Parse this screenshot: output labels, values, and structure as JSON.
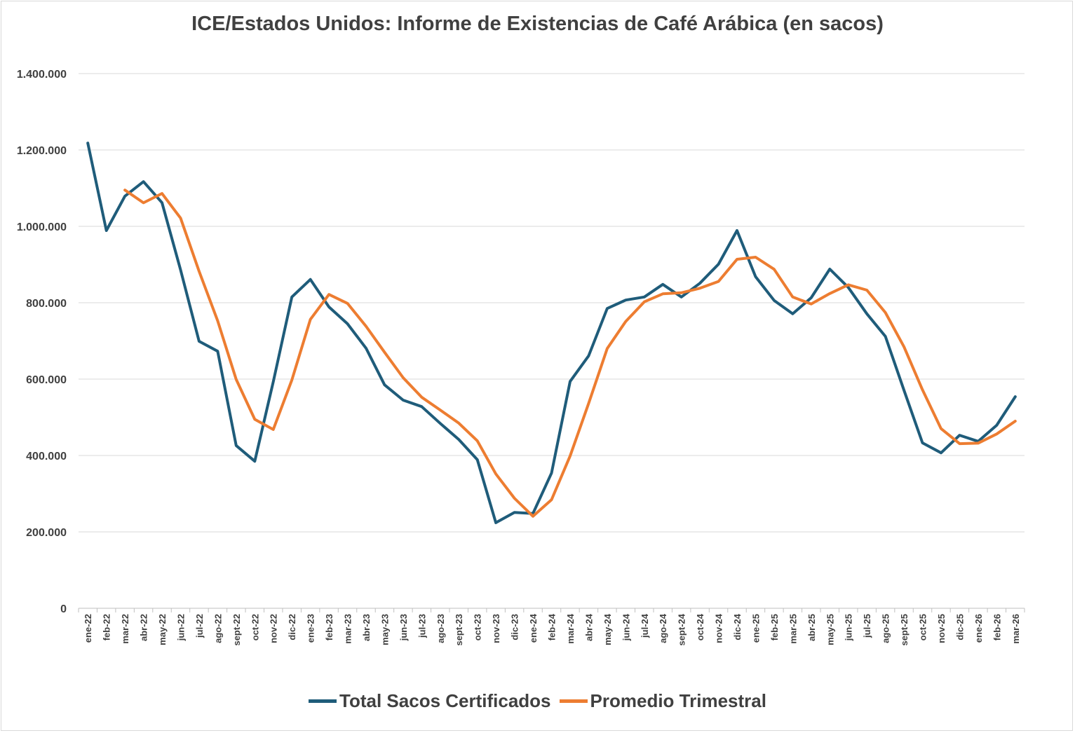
{
  "chart_data": {
    "type": "line",
    "title": "ICE/Estados Unidos: Informe de Existencias de Café Arábica (en sacos)",
    "xlabel": "",
    "ylabel": "",
    "ylim": [
      0,
      1400000
    ],
    "yticks": [
      0,
      200000,
      400000,
      600000,
      800000,
      1000000,
      1200000,
      1400000
    ],
    "ytick_labels": [
      "0",
      "200.000",
      "400.000",
      "600.000",
      "800.000",
      "1.000.000",
      "1.200.000",
      "1.400.000"
    ],
    "grid": "horizontal",
    "legend": "bottom",
    "categories": [
      "ene-22",
      "feb-22",
      "mar-22",
      "abr-22",
      "may-22",
      "jun-22",
      "jul-22",
      "ago-22",
      "sept-22",
      "oct-22",
      "nov-22",
      "dic-22",
      "ene-23",
      "feb-23",
      "mar-23",
      "abr-23",
      "may-23",
      "jun-23",
      "jul-23",
      "ago-23",
      "sept-23",
      "oct-23",
      "nov-23",
      "dic-23",
      "ene-24",
      "feb-24",
      "mar-24",
      "abr-24",
      "may-24",
      "jun-24",
      "jul-24",
      "ago-24",
      "sept-24",
      "oct-24",
      "nov-24",
      "dic-24",
      "ene-25",
      "feb-25",
      "mar-25",
      "abr-25",
      "may-25",
      "jun-25",
      "jul-25",
      "ago-25",
      "sept-25",
      "oct-25",
      "nov-25",
      "dic-25",
      "ene-26",
      "feb-26",
      "mar-26"
    ],
    "series": [
      {
        "name": "Total Sacos Certificados",
        "color": "#1f5c7a",
        "values": [
          1218000,
          989000,
          1079000,
          1117000,
          1062000,
          886000,
          699000,
          673000,
          426000,
          385000,
          593000,
          815000,
          861000,
          789000,
          745000,
          681000,
          585000,
          545000,
          528000,
          484000,
          442000,
          389000,
          224000,
          251000,
          248000,
          354000,
          594000,
          661000,
          785000,
          807000,
          815000,
          848000,
          815000,
          851000,
          901000,
          989000,
          868000,
          806000,
          771000,
          813000,
          888000,
          840000,
          771000,
          712000,
          571000,
          433000,
          407000,
          453000,
          437000,
          479000,
          554000
        ]
      },
      {
        "name": "Promedio Trimestral",
        "color": "#ed7d31",
        "values": [
          null,
          null,
          1095000,
          1061700,
          1086000,
          1021700,
          882300,
          752700,
          599300,
          494700,
          468000,
          597700,
          756300,
          821700,
          798300,
          738300,
          670300,
          603700,
          552700,
          519000,
          484700,
          438300,
          351700,
          288000,
          241000,
          284300,
          398700,
          536300,
          680000,
          751000,
          802300,
          823300,
          826000,
          838000,
          855700,
          913700,
          919300,
          887700,
          815000,
          796700,
          824000,
          847000,
          833000,
          774300,
          684700,
          572000,
          470300,
          431000,
          432300,
          456300,
          490000
        ]
      }
    ]
  }
}
